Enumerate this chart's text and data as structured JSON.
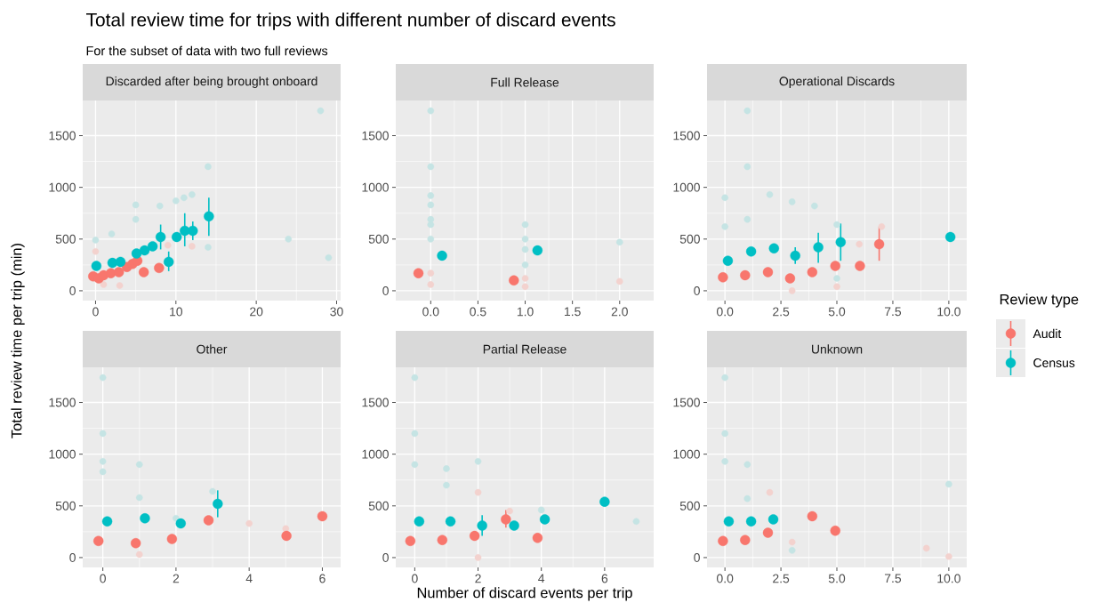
{
  "chart_data": [
    {
      "type": "scatter",
      "title": "Discarded after being brought onboard",
      "annotations": [
        "Total review time for trips with different number of discard events",
        "For the subset of data with two full reviews"
      ],
      "ylabel": "Total review time per trip (min)",
      "legend": "right",
      "legend_title": "Review type",
      "xlim": [
        -1.6,
        30.5
      ],
      "ylim": [
        -95,
        1840
      ],
      "xticks": [
        0,
        10,
        20,
        30
      ],
      "yticks": [
        0,
        500,
        1000,
        1500
      ],
      "grid": true,
      "marker": "circle",
      "series": [
        {
          "color": "#f3d2ce",
          "x": [
            0,
            1,
            3,
            9,
            12
          ],
          "values": [
            380,
            60,
            50,
            440,
            430
          ]
        },
        {
          "color": "#c5e4e4",
          "x": [
            28,
            24,
            29,
            14,
            12,
            11,
            10,
            5,
            8,
            5,
            0,
            2,
            14
          ],
          "values": [
            1740,
            500,
            320,
            1200,
            930,
            900,
            870,
            830,
            820,
            690,
            490,
            550,
            420
          ]
        },
        {
          "name": "Audit",
          "color": "#f8766d",
          "x": [
            -0.3,
            0.4,
            1,
            1.9,
            2.9,
            3.9,
            4.6,
            5.2,
            6,
            7.9
          ],
          "values": [
            140,
            120,
            150,
            170,
            180,
            230,
            260,
            290,
            180,
            220
          ]
        },
        {
          "name": "Census",
          "color": "#00bfc4",
          "x": [
            0.1,
            2.1,
            3.1,
            5.1,
            6.1,
            7.1,
            8.1,
            9.1,
            10.1,
            11.1,
            12.1,
            14.1
          ],
          "values": [
            240,
            270,
            280,
            360,
            390,
            430,
            520,
            280,
            520,
            580,
            580,
            720
          ],
          "errors": [
            null,
            null,
            null,
            null,
            null,
            null,
            [
              400,
              640
            ],
            [
              190,
              380
            ],
            null,
            [
              430,
              750
            ],
            [
              490,
              670
            ],
            [
              530,
              900
            ]
          ]
        }
      ]
    },
    {
      "type": "scatter",
      "title": "Full Release",
      "xlim": [
        -0.37,
        2.36
      ],
      "ylim": [
        -95,
        1840
      ],
      "xticks": [
        {
          "value": 0,
          "label": "0.0"
        },
        0.5,
        {
          "value": 1,
          "label": "1.0"
        },
        1.5,
        {
          "value": 2,
          "label": "2.0"
        }
      ],
      "yticks": [
        0,
        500,
        1000,
        1500
      ],
      "grid": true,
      "marker": "circle",
      "series": [
        {
          "color": "#f3d2ce",
          "x": [
            0,
            0,
            1,
            1,
            2
          ],
          "values": [
            170,
            60,
            120,
            40,
            90
          ]
        },
        {
          "color": "#c5e4e4",
          "x": [
            0,
            0,
            0,
            0,
            0,
            0,
            0,
            1,
            1,
            1,
            1,
            2
          ],
          "values": [
            1740,
            1200,
            920,
            830,
            690,
            640,
            500,
            640,
            500,
            400,
            250,
            470
          ]
        },
        {
          "color": "#f8766d",
          "x": [
            -0.13,
            0.88
          ],
          "values": [
            170,
            100
          ]
        },
        {
          "color": "#00bfc4",
          "x": [
            0.12,
            1.13
          ],
          "values": [
            340,
            390
          ]
        }
      ]
    },
    {
      "type": "scatter",
      "title": "Operational Discards",
      "xlim": [
        -0.8,
        10.8
      ],
      "ylim": [
        -95,
        1840
      ],
      "xticks": [
        {
          "value": 0,
          "label": "0.0"
        },
        2.5,
        {
          "value": 5,
          "label": "5.0"
        },
        7.5,
        {
          "value": 10,
          "label": "10.0"
        }
      ],
      "yticks": [
        0,
        500,
        1000,
        1500
      ],
      "grid": true,
      "marker": "circle",
      "series": [
        {
          "color": "#f3d2ce",
          "x": [
            7,
            6,
            5,
            3
          ],
          "values": [
            620,
            450,
            40,
            0
          ]
        },
        {
          "color": "#c5e4e4",
          "x": [
            1,
            1,
            0,
            2,
            3,
            4,
            5,
            1,
            5,
            0
          ],
          "values": [
            1740,
            1200,
            900,
            930,
            860,
            820,
            640,
            690,
            120,
            620
          ]
        },
        {
          "color": "#f8766d",
          "x": [
            -0.09,
            0.9,
            1.92,
            2.91,
            3.9,
            4.93,
            6.03,
            6.89
          ],
          "values": [
            130,
            150,
            180,
            120,
            180,
            240,
            240,
            450
          ],
          "errors": [
            null,
            null,
            null,
            null,
            null,
            null,
            null,
            [
              290,
              620
            ]
          ]
        },
        {
          "color": "#00bfc4",
          "x": [
            0.13,
            1.17,
            2.19,
            3.14,
            4.17,
            5.17,
            10.07
          ],
          "values": [
            290,
            380,
            410,
            340,
            420,
            470,
            520
          ],
          "errors": [
            null,
            null,
            null,
            [
              260,
              420
            ],
            [
              270,
              560
            ],
            [
              290,
              650
            ],
            null
          ]
        }
      ]
    },
    {
      "type": "scatter",
      "title": "Other",
      "xlim": [
        -0.55,
        6.5
      ],
      "ylim": [
        -95,
        1840
      ],
      "xticks": [
        0,
        2,
        4,
        6
      ],
      "yticks": [
        0,
        500,
        1000,
        1500
      ],
      "grid": true,
      "marker": "circle",
      "series": [
        {
          "color": "#f3d2ce",
          "x": [
            4,
            5,
            1
          ],
          "values": [
            330,
            280,
            30
          ]
        },
        {
          "color": "#c5e4e4",
          "x": [
            0,
            0,
            0,
            0,
            1,
            1,
            2,
            3
          ],
          "values": [
            1740,
            1200,
            930,
            830,
            900,
            580,
            380,
            640
          ]
        },
        {
          "color": "#f8766d",
          "x": [
            -0.12,
            0.9,
            1.89,
            2.89,
            5.02,
            6
          ],
          "values": [
            160,
            140,
            180,
            360,
            210,
            400
          ]
        },
        {
          "color": "#00bfc4",
          "x": [
            0.12,
            1.15,
            2.13,
            3.14
          ],
          "values": [
            350,
            380,
            330,
            520
          ],
          "errors": [
            null,
            null,
            null,
            [
              390,
              650
            ]
          ]
        }
      ]
    },
    {
      "type": "scatter",
      "title": "Partial Release",
      "xlabel": "Number of discard events per trip",
      "xlim": [
        -0.6,
        7.55
      ],
      "ylim": [
        -95,
        1840
      ],
      "xticks": [
        0,
        2,
        4,
        6
      ],
      "yticks": [
        0,
        500,
        1000,
        1500
      ],
      "grid": true,
      "marker": "circle",
      "series": [
        {
          "color": "#f3d2ce",
          "x": [
            2,
            3,
            2
          ],
          "values": [
            630,
            450,
            0
          ]
        },
        {
          "color": "#c5e4e4",
          "x": [
            0,
            0,
            0,
            1,
            2,
            1,
            4,
            7
          ],
          "values": [
            1740,
            1200,
            900,
            860,
            930,
            700,
            460,
            350
          ]
        },
        {
          "color": "#f8766d",
          "x": [
            -0.14,
            0.87,
            1.89,
            2.88,
            3.88
          ],
          "values": [
            160,
            170,
            210,
            370,
            190
          ],
          "errors": [
            null,
            null,
            null,
            [
              290,
              460
            ],
            null
          ]
        },
        {
          "color": "#00bfc4",
          "x": [
            0.14,
            1.13,
            2.13,
            3.14,
            4.11,
            6
          ],
          "values": [
            350,
            350,
            310,
            310,
            370,
            540
          ],
          "errors": [
            null,
            null,
            [
              210,
              410
            ],
            null,
            null,
            null
          ]
        }
      ]
    },
    {
      "type": "scatter",
      "title": "Unknown",
      "xlim": [
        -0.8,
        10.8
      ],
      "ylim": [
        -95,
        1840
      ],
      "xticks": [
        {
          "value": 0,
          "label": "0.0"
        },
        2.5,
        {
          "value": 5,
          "label": "5.0"
        },
        7.5,
        {
          "value": 10,
          "label": "10.0"
        }
      ],
      "yticks": [
        0,
        500,
        1000,
        1500
      ],
      "grid": true,
      "marker": "circle",
      "series": [
        {
          "color": "#f3d2ce",
          "x": [
            9,
            10,
            2,
            3
          ],
          "values": [
            90,
            10,
            630,
            150
          ]
        },
        {
          "color": "#c5e4e4",
          "x": [
            0,
            0,
            0,
            1,
            10,
            3,
            1
          ],
          "values": [
            1740,
            1200,
            930,
            900,
            710,
            70,
            570
          ]
        },
        {
          "color": "#f8766d",
          "x": [
            -0.09,
            0.9,
            1.92,
            3.9,
            4.93
          ],
          "values": [
            160,
            170,
            240,
            400,
            260
          ]
        },
        {
          "color": "#00bfc4",
          "x": [
            0.17,
            1.17,
            2.16
          ],
          "values": [
            350,
            350,
            370
          ]
        }
      ]
    }
  ]
}
